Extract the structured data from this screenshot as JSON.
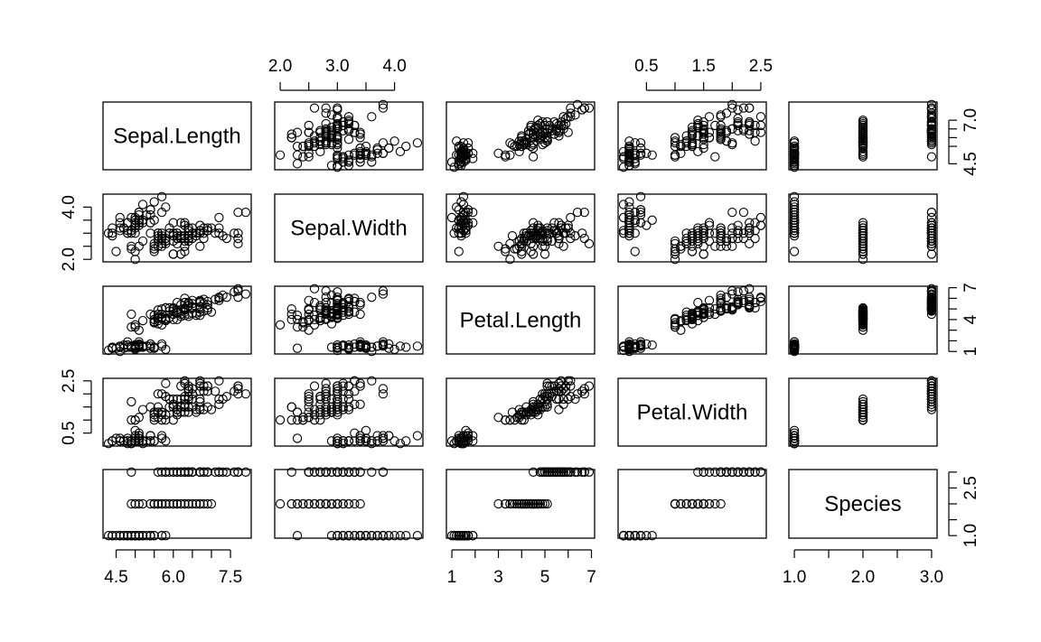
{
  "chart_data": {
    "type": "scatter",
    "kind": "scatterplot-matrix",
    "title": "",
    "variables": [
      "Sepal.Length",
      "Sepal.Width",
      "Petal.Length",
      "Petal.Width",
      "Species"
    ],
    "ranges": {
      "Sepal.Length": [
        4.3,
        7.9
      ],
      "Sepal.Width": [
        2.0,
        4.4
      ],
      "Petal.Length": [
        1.0,
        6.9
      ],
      "Petal.Width": [
        0.1,
        2.5
      ],
      "Species": [
        1,
        3
      ]
    },
    "axes": {
      "Sepal.Length": {
        "side": "bottom",
        "ticks": [
          4.5,
          6.0,
          7.5
        ],
        "labels": [
          "4.5",
          "6.0",
          "7.5"
        ],
        "minor": [
          5.0,
          5.5,
          6.5,
          7.0
        ]
      },
      "Sepal.Width": {
        "side": "top",
        "ticks": [
          2.0,
          3.0,
          4.0
        ],
        "labels": [
          "2.0",
          "3.0",
          "4.0"
        ],
        "minor": [
          2.5,
          3.5
        ]
      },
      "Petal.Length": {
        "side": "bottom",
        "ticks": [
          1,
          3,
          5,
          7
        ],
        "labels": [
          "1",
          "3",
          "5",
          "7"
        ],
        "minor": [
          2,
          4,
          6
        ]
      },
      "Petal.Width": {
        "side": "top",
        "ticks": [
          0.5,
          1.5,
          2.5
        ],
        "labels": [
          "0.5",
          "1.5",
          "2.5"
        ],
        "minor": [
          1.0,
          2.0
        ]
      },
      "Species": {
        "side": "bottom",
        "ticks": [
          1.0,
          2.0,
          3.0
        ],
        "labels": [
          "1.0",
          "2.0",
          "3.0"
        ],
        "minor": [
          1.5,
          2.5
        ]
      }
    },
    "y_axes": {
      "Sepal.Length": {
        "side": "right",
        "ticks": [
          4.5,
          7.0
        ],
        "labels": [
          "4.5",
          "7.0"
        ],
        "minor": [
          5.5,
          6.0,
          6.5
        ]
      },
      "Sepal.Width": {
        "side": "left",
        "ticks": [
          2.0,
          4.0
        ],
        "labels": [
          "2.0",
          "4.0"
        ],
        "minor": [
          2.5,
          3.0,
          3.5
        ]
      },
      "Petal.Length": {
        "side": "right",
        "ticks": [
          1,
          4,
          7
        ],
        "labels": [
          "1",
          "4",
          "7"
        ],
        "minor": [
          2,
          3,
          5,
          6
        ]
      },
      "Petal.Width": {
        "side": "left",
        "ticks": [
          0.5,
          2.5
        ],
        "labels": [
          "0.5",
          "2.5"
        ],
        "minor": [
          1.0,
          1.5,
          2.0
        ]
      },
      "Species": {
        "side": "right",
        "ticks": [
          1.0,
          2.5
        ],
        "labels": [
          "1.0",
          "2.5"
        ],
        "minor": [
          1.5,
          2.0,
          3.0
        ]
      }
    },
    "observations": [
      [
        5.1,
        3.5,
        1.4,
        0.2,
        1
      ],
      [
        4.9,
        3.0,
        1.4,
        0.2,
        1
      ],
      [
        4.7,
        3.2,
        1.3,
        0.2,
        1
      ],
      [
        4.6,
        3.1,
        1.5,
        0.2,
        1
      ],
      [
        5.0,
        3.6,
        1.4,
        0.2,
        1
      ],
      [
        5.4,
        3.9,
        1.7,
        0.4,
        1
      ],
      [
        4.6,
        3.4,
        1.4,
        0.3,
        1
      ],
      [
        5.0,
        3.4,
        1.5,
        0.2,
        1
      ],
      [
        4.4,
        2.9,
        1.4,
        0.2,
        1
      ],
      [
        4.9,
        3.1,
        1.5,
        0.1,
        1
      ],
      [
        5.4,
        3.7,
        1.5,
        0.2,
        1
      ],
      [
        4.8,
        3.4,
        1.6,
        0.2,
        1
      ],
      [
        4.8,
        3.0,
        1.4,
        0.1,
        1
      ],
      [
        4.3,
        3.0,
        1.1,
        0.1,
        1
      ],
      [
        5.8,
        4.0,
        1.2,
        0.2,
        1
      ],
      [
        5.7,
        4.4,
        1.5,
        0.4,
        1
      ],
      [
        5.4,
        3.9,
        1.3,
        0.4,
        1
      ],
      [
        5.1,
        3.5,
        1.4,
        0.3,
        1
      ],
      [
        5.7,
        3.8,
        1.7,
        0.3,
        1
      ],
      [
        5.1,
        3.8,
        1.5,
        0.3,
        1
      ],
      [
        5.4,
        3.4,
        1.7,
        0.2,
        1
      ],
      [
        5.1,
        3.7,
        1.5,
        0.4,
        1
      ],
      [
        4.6,
        3.6,
        1.0,
        0.2,
        1
      ],
      [
        5.1,
        3.3,
        1.7,
        0.5,
        1
      ],
      [
        4.8,
        3.4,
        1.9,
        0.2,
        1
      ],
      [
        5.0,
        3.0,
        1.6,
        0.2,
        1
      ],
      [
        5.0,
        3.4,
        1.6,
        0.4,
        1
      ],
      [
        5.2,
        3.5,
        1.5,
        0.2,
        1
      ],
      [
        5.2,
        3.4,
        1.4,
        0.2,
        1
      ],
      [
        4.7,
        3.2,
        1.6,
        0.2,
        1
      ],
      [
        4.8,
        3.1,
        1.6,
        0.2,
        1
      ],
      [
        5.4,
        3.4,
        1.5,
        0.4,
        1
      ],
      [
        5.2,
        4.1,
        1.5,
        0.1,
        1
      ],
      [
        5.5,
        4.2,
        1.4,
        0.2,
        1
      ],
      [
        4.9,
        3.1,
        1.5,
        0.2,
        1
      ],
      [
        5.0,
        3.2,
        1.2,
        0.2,
        1
      ],
      [
        5.5,
        3.5,
        1.3,
        0.2,
        1
      ],
      [
        4.9,
        3.6,
        1.4,
        0.1,
        1
      ],
      [
        4.4,
        3.0,
        1.3,
        0.2,
        1
      ],
      [
        5.1,
        3.4,
        1.5,
        0.2,
        1
      ],
      [
        5.0,
        3.5,
        1.3,
        0.3,
        1
      ],
      [
        4.5,
        2.3,
        1.3,
        0.3,
        1
      ],
      [
        4.4,
        3.2,
        1.3,
        0.2,
        1
      ],
      [
        5.0,
        3.5,
        1.6,
        0.6,
        1
      ],
      [
        5.1,
        3.8,
        1.9,
        0.4,
        1
      ],
      [
        4.8,
        3.0,
        1.4,
        0.3,
        1
      ],
      [
        5.1,
        3.8,
        1.6,
        0.2,
        1
      ],
      [
        4.6,
        3.2,
        1.4,
        0.2,
        1
      ],
      [
        5.3,
        3.7,
        1.5,
        0.2,
        1
      ],
      [
        5.0,
        3.3,
        1.4,
        0.2,
        1
      ],
      [
        7.0,
        3.2,
        4.7,
        1.4,
        2
      ],
      [
        6.4,
        3.2,
        4.5,
        1.5,
        2
      ],
      [
        6.9,
        3.1,
        4.9,
        1.5,
        2
      ],
      [
        5.5,
        2.3,
        4.0,
        1.3,
        2
      ],
      [
        6.5,
        2.8,
        4.6,
        1.5,
        2
      ],
      [
        5.7,
        2.8,
        4.5,
        1.3,
        2
      ],
      [
        6.3,
        3.3,
        4.7,
        1.6,
        2
      ],
      [
        4.9,
        2.4,
        3.3,
        1.0,
        2
      ],
      [
        6.6,
        2.9,
        4.6,
        1.3,
        2
      ],
      [
        5.2,
        2.7,
        3.9,
        1.4,
        2
      ],
      [
        5.0,
        2.0,
        3.5,
        1.0,
        2
      ],
      [
        5.9,
        3.0,
        4.2,
        1.5,
        2
      ],
      [
        6.0,
        2.2,
        4.0,
        1.0,
        2
      ],
      [
        6.1,
        2.9,
        4.7,
        1.4,
        2
      ],
      [
        5.6,
        2.9,
        3.6,
        1.3,
        2
      ],
      [
        6.7,
        3.1,
        4.4,
        1.4,
        2
      ],
      [
        5.6,
        3.0,
        4.5,
        1.5,
        2
      ],
      [
        5.8,
        2.7,
        4.1,
        1.0,
        2
      ],
      [
        6.2,
        2.2,
        4.5,
        1.5,
        2
      ],
      [
        5.6,
        2.5,
        3.9,
        1.1,
        2
      ],
      [
        5.9,
        3.2,
        4.8,
        1.8,
        2
      ],
      [
        6.1,
        2.8,
        4.0,
        1.3,
        2
      ],
      [
        6.3,
        2.5,
        4.9,
        1.5,
        2
      ],
      [
        6.1,
        2.8,
        4.7,
        1.2,
        2
      ],
      [
        6.4,
        2.9,
        4.3,
        1.3,
        2
      ],
      [
        6.6,
        3.0,
        4.4,
        1.4,
        2
      ],
      [
        6.8,
        2.8,
        4.8,
        1.4,
        2
      ],
      [
        6.7,
        3.0,
        5.0,
        1.7,
        2
      ],
      [
        6.0,
        2.9,
        4.5,
        1.5,
        2
      ],
      [
        5.7,
        2.6,
        3.5,
        1.0,
        2
      ],
      [
        5.5,
        2.4,
        3.8,
        1.1,
        2
      ],
      [
        5.5,
        2.4,
        3.7,
        1.0,
        2
      ],
      [
        5.8,
        2.7,
        3.9,
        1.2,
        2
      ],
      [
        6.0,
        2.7,
        5.1,
        1.6,
        2
      ],
      [
        5.4,
        3.0,
        4.5,
        1.5,
        2
      ],
      [
        6.0,
        3.4,
        4.5,
        1.6,
        2
      ],
      [
        6.7,
        3.1,
        4.7,
        1.5,
        2
      ],
      [
        6.3,
        2.3,
        4.4,
        1.3,
        2
      ],
      [
        5.6,
        3.0,
        4.1,
        1.3,
        2
      ],
      [
        5.5,
        2.5,
        4.0,
        1.3,
        2
      ],
      [
        5.5,
        2.6,
        4.4,
        1.2,
        2
      ],
      [
        6.1,
        3.0,
        4.6,
        1.4,
        2
      ],
      [
        5.8,
        2.6,
        4.0,
        1.2,
        2
      ],
      [
        5.0,
        2.3,
        3.3,
        1.0,
        2
      ],
      [
        5.6,
        2.7,
        4.2,
        1.3,
        2
      ],
      [
        5.7,
        3.0,
        4.2,
        1.2,
        2
      ],
      [
        5.7,
        2.9,
        4.2,
        1.3,
        2
      ],
      [
        6.2,
        2.9,
        4.3,
        1.3,
        2
      ],
      [
        5.1,
        2.5,
        3.0,
        1.1,
        2
      ],
      [
        5.7,
        2.8,
        4.1,
        1.3,
        2
      ],
      [
        6.3,
        3.3,
        6.0,
        2.5,
        3
      ],
      [
        5.8,
        2.7,
        5.1,
        1.9,
        3
      ],
      [
        7.1,
        3.0,
        5.9,
        2.1,
        3
      ],
      [
        6.3,
        2.9,
        5.6,
        1.8,
        3
      ],
      [
        6.5,
        3.0,
        5.8,
        2.2,
        3
      ],
      [
        7.6,
        3.0,
        6.6,
        2.1,
        3
      ],
      [
        4.9,
        2.5,
        4.5,
        1.7,
        3
      ],
      [
        7.3,
        2.9,
        6.3,
        1.8,
        3
      ],
      [
        6.7,
        2.5,
        5.8,
        1.8,
        3
      ],
      [
        7.2,
        3.6,
        6.1,
        2.5,
        3
      ],
      [
        6.5,
        3.2,
        5.1,
        2.0,
        3
      ],
      [
        6.4,
        2.7,
        5.3,
        1.9,
        3
      ],
      [
        6.8,
        3.0,
        5.5,
        2.1,
        3
      ],
      [
        5.7,
        2.5,
        5.0,
        2.0,
        3
      ],
      [
        5.8,
        2.8,
        5.1,
        2.4,
        3
      ],
      [
        6.4,
        3.2,
        5.3,
        2.3,
        3
      ],
      [
        6.5,
        3.0,
        5.5,
        1.8,
        3
      ],
      [
        7.7,
        3.8,
        6.7,
        2.2,
        3
      ],
      [
        7.7,
        2.6,
        6.9,
        2.3,
        3
      ],
      [
        6.0,
        2.2,
        5.0,
        1.5,
        3
      ],
      [
        6.9,
        3.2,
        5.7,
        2.3,
        3
      ],
      [
        5.6,
        2.8,
        4.9,
        2.0,
        3
      ],
      [
        7.7,
        2.8,
        6.7,
        2.0,
        3
      ],
      [
        6.3,
        2.7,
        4.9,
        1.8,
        3
      ],
      [
        6.7,
        3.3,
        5.7,
        2.1,
        3
      ],
      [
        7.2,
        3.2,
        6.0,
        1.8,
        3
      ],
      [
        6.2,
        2.8,
        4.8,
        1.8,
        3
      ],
      [
        6.1,
        3.0,
        4.9,
        1.8,
        3
      ],
      [
        6.4,
        2.8,
        5.6,
        2.1,
        3
      ],
      [
        7.2,
        3.0,
        5.8,
        1.6,
        3
      ],
      [
        7.4,
        2.8,
        6.1,
        1.9,
        3
      ],
      [
        7.9,
        3.8,
        6.4,
        2.0,
        3
      ],
      [
        6.4,
        2.8,
        5.6,
        2.2,
        3
      ],
      [
        6.3,
        2.8,
        5.1,
        1.5,
        3
      ],
      [
        6.1,
        2.6,
        5.6,
        1.4,
        3
      ],
      [
        7.7,
        3.0,
        6.1,
        2.3,
        3
      ],
      [
        6.3,
        3.4,
        5.6,
        2.4,
        3
      ],
      [
        6.4,
        3.1,
        5.5,
        1.8,
        3
      ],
      [
        6.0,
        3.0,
        4.8,
        1.8,
        3
      ],
      [
        6.9,
        3.1,
        5.4,
        2.1,
        3
      ],
      [
        6.7,
        3.1,
        5.6,
        2.4,
        3
      ],
      [
        6.9,
        3.1,
        5.1,
        2.3,
        3
      ],
      [
        5.8,
        2.7,
        5.1,
        1.9,
        3
      ],
      [
        6.8,
        3.2,
        5.9,
        2.3,
        3
      ],
      [
        6.7,
        3.3,
        5.7,
        2.5,
        3
      ],
      [
        6.7,
        3.0,
        5.2,
        2.3,
        3
      ],
      [
        6.3,
        2.5,
        5.0,
        1.9,
        3
      ],
      [
        6.5,
        3.0,
        5.2,
        2.0,
        3
      ],
      [
        6.2,
        3.4,
        5.4,
        2.3,
        3
      ],
      [
        5.9,
        3.0,
        5.1,
        1.8,
        3
      ]
    ]
  }
}
